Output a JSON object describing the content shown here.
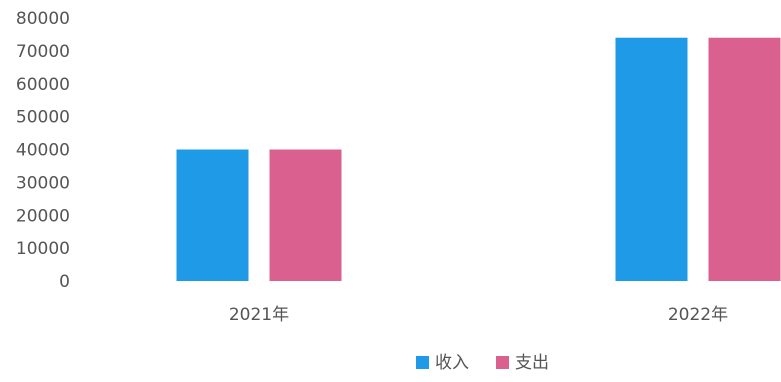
{
  "chart_data": {
    "type": "bar",
    "categories": [
      "2021年",
      "2022年"
    ],
    "series": [
      {
        "name": "收入",
        "color": "#1e9ae6",
        "values": [
          40000,
          74000
        ]
      },
      {
        "name": "支出",
        "color": "#d9608f",
        "values": [
          40000,
          74000
        ]
      }
    ],
    "y_ticks": [
      "0",
      "10000",
      "20000",
      "30000",
      "40000",
      "50000",
      "60000",
      "70000",
      "80000"
    ],
    "ylim": [
      0,
      80000
    ],
    "grid": false,
    "legend_position": "bottom-center"
  }
}
